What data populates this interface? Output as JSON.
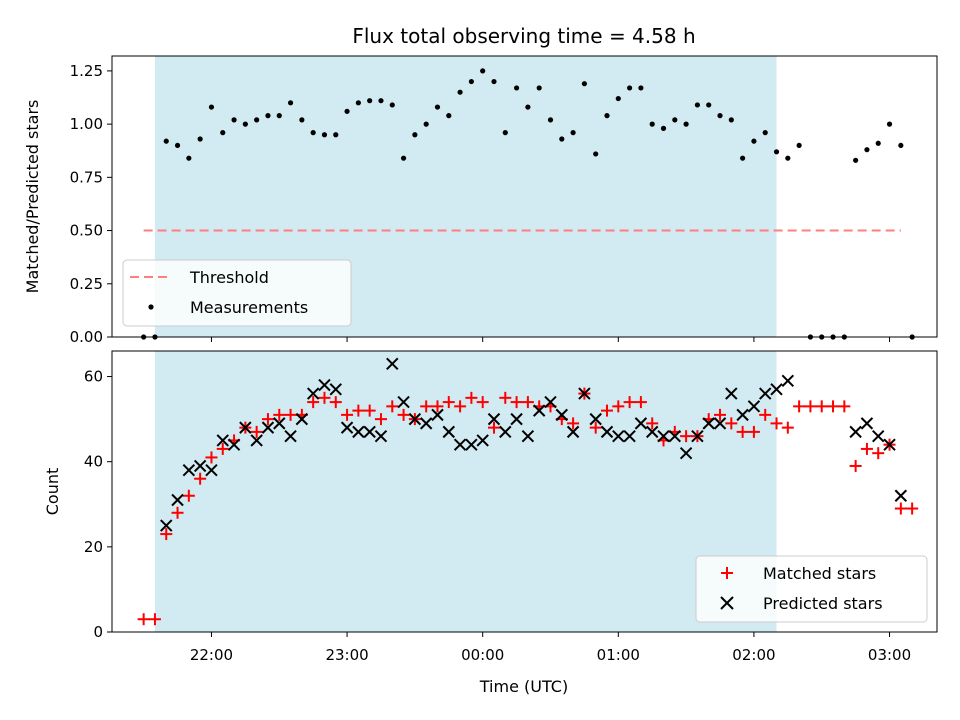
{
  "chart_data": [
    {
      "type": "scatter",
      "title": "Flux total observing time = 4.58 h",
      "xlabel": "",
      "ylabel": "Matched/Predicted stars",
      "xlim": [
        "21:16",
        "03:21"
      ],
      "ylim": [
        0,
        1.32
      ],
      "yticks": [
        "0.00",
        "0.25",
        "0.50",
        "0.75",
        "1.00",
        "1.25"
      ],
      "ytick_values": [
        0,
        0.25,
        0.5,
        0.75,
        1.0,
        1.25
      ],
      "shaded_interval": [
        "21:35",
        "02:10"
      ],
      "shade_color": "#add8e6",
      "threshold": {
        "name": "Threshold",
        "value": 0.5,
        "x_range": [
          "21:30",
          "03:05"
        ],
        "color": "#ff7f7f"
      },
      "legend_position": "lower left",
      "series": [
        {
          "name": "Measurements",
          "marker": "dot",
          "color": "#000000",
          "points": [
            [
              "21:30",
              0
            ],
            [
              "21:35",
              0
            ],
            [
              "21:40",
              0.92
            ],
            [
              "21:45",
              0.9
            ],
            [
              "21:50",
              0.84
            ],
            [
              "21:55",
              0.93
            ],
            [
              "22:00",
              1.08
            ],
            [
              "22:05",
              0.96
            ],
            [
              "22:10",
              1.02
            ],
            [
              "22:15",
              1.0
            ],
            [
              "22:20",
              1.02
            ],
            [
              "22:25",
              1.04
            ],
            [
              "22:30",
              1.04
            ],
            [
              "22:35",
              1.1
            ],
            [
              "22:40",
              1.02
            ],
            [
              "22:45",
              0.96
            ],
            [
              "22:50",
              0.95
            ],
            [
              "22:55",
              0.95
            ],
            [
              "23:00",
              1.06
            ],
            [
              "23:05",
              1.1
            ],
            [
              "23:10",
              1.11
            ],
            [
              "23:15",
              1.11
            ],
            [
              "23:20",
              1.09
            ],
            [
              "23:25",
              0.84
            ],
            [
              "23:30",
              0.95
            ],
            [
              "23:35",
              1.0
            ],
            [
              "23:40",
              1.08
            ],
            [
              "23:45",
              1.04
            ],
            [
              "23:50",
              1.15
            ],
            [
              "23:55",
              1.2
            ],
            [
              "00:00",
              1.25
            ],
            [
              "00:05",
              1.2
            ],
            [
              "00:10",
              0.96
            ],
            [
              "00:15",
              1.17
            ],
            [
              "00:20",
              1.08
            ],
            [
              "00:25",
              1.17
            ],
            [
              "00:30",
              1.02
            ],
            [
              "00:35",
              0.93
            ],
            [
              "00:40",
              0.96
            ],
            [
              "00:45",
              1.19
            ],
            [
              "00:50",
              0.86
            ],
            [
              "00:55",
              1.04
            ],
            [
              "01:00",
              1.12
            ],
            [
              "01:05",
              1.17
            ],
            [
              "01:10",
              1.17
            ],
            [
              "01:15",
              1.0
            ],
            [
              "01:20",
              0.98
            ],
            [
              "01:25",
              1.02
            ],
            [
              "01:30",
              1.0
            ],
            [
              "01:35",
              1.09
            ],
            [
              "01:40",
              1.09
            ],
            [
              "01:45",
              1.04
            ],
            [
              "01:50",
              1.02
            ],
            [
              "01:55",
              0.84
            ],
            [
              "02:00",
              0.92
            ],
            [
              "02:05",
              0.96
            ],
            [
              "02:10",
              0.87
            ],
            [
              "02:15",
              0.84
            ],
            [
              "02:20",
              0.9
            ],
            [
              "02:25",
              0
            ],
            [
              "02:30",
              0
            ],
            [
              "02:35",
              0
            ],
            [
              "02:40",
              0
            ],
            [
              "02:45",
              0.83
            ],
            [
              "02:50",
              0.88
            ],
            [
              "02:55",
              0.91
            ],
            [
              "03:00",
              1.0
            ],
            [
              "03:05",
              0.9
            ],
            [
              "03:10",
              0
            ]
          ]
        }
      ]
    },
    {
      "type": "scatter",
      "title": "",
      "xlabel": "Time (UTC)",
      "ylabel": "Count",
      "xlim": [
        "21:16",
        "03:21"
      ],
      "ylim": [
        0,
        66
      ],
      "xticks": [
        "22:00",
        "23:00",
        "00:00",
        "01:00",
        "02:00",
        "03:00"
      ],
      "yticks": [
        "0",
        "20",
        "40",
        "60"
      ],
      "ytick_values": [
        0,
        20,
        40,
        60
      ],
      "shaded_interval": [
        "21:35",
        "02:10"
      ],
      "shade_color": "#add8e6",
      "legend_position": "lower right",
      "series": [
        {
          "name": "Matched stars",
          "marker": "plus",
          "color": "#ff0000",
          "points": [
            [
              "21:30",
              3
            ],
            [
              "21:35",
              3
            ],
            [
              "21:40",
              23
            ],
            [
              "21:45",
              28
            ],
            [
              "21:50",
              32
            ],
            [
              "21:55",
              36
            ],
            [
              "22:00",
              41
            ],
            [
              "22:05",
              43
            ],
            [
              "22:10",
              45
            ],
            [
              "22:15",
              48
            ],
            [
              "22:20",
              47
            ],
            [
              "22:25",
              50
            ],
            [
              "22:30",
              51
            ],
            [
              "22:35",
              51
            ],
            [
              "22:40",
              51
            ],
            [
              "22:45",
              54
            ],
            [
              "22:50",
              55
            ],
            [
              "22:55",
              54
            ],
            [
              "23:00",
              51
            ],
            [
              "23:05",
              52
            ],
            [
              "23:10",
              52
            ],
            [
              "23:15",
              50
            ],
            [
              "23:20",
              53
            ],
            [
              "23:25",
              51
            ],
            [
              "23:30",
              50
            ],
            [
              "23:35",
              53
            ],
            [
              "23:40",
              53
            ],
            [
              "23:45",
              54
            ],
            [
              "23:50",
              53
            ],
            [
              "23:55",
              55
            ],
            [
              "00:00",
              54
            ],
            [
              "00:05",
              48
            ],
            [
              "00:10",
              55
            ],
            [
              "00:15",
              54
            ],
            [
              "00:20",
              54
            ],
            [
              "00:25",
              53
            ],
            [
              "00:30",
              53
            ],
            [
              "00:35",
              50
            ],
            [
              "00:40",
              49
            ],
            [
              "00:45",
              56
            ],
            [
              "00:50",
              48
            ],
            [
              "00:55",
              52
            ],
            [
              "01:00",
              53
            ],
            [
              "01:05",
              54
            ],
            [
              "01:10",
              54
            ],
            [
              "01:15",
              49
            ],
            [
              "01:20",
              45
            ],
            [
              "01:25",
              47
            ],
            [
              "01:30",
              46
            ],
            [
              "01:35",
              46
            ],
            [
              "01:40",
              50
            ],
            [
              "01:45",
              51
            ],
            [
              "01:50",
              49
            ],
            [
              "01:55",
              47
            ],
            [
              "02:00",
              47
            ],
            [
              "02:05",
              51
            ],
            [
              "02:10",
              49
            ],
            [
              "02:15",
              48
            ],
            [
              "02:20",
              53
            ],
            [
              "02:25",
              53
            ],
            [
              "02:30",
              53
            ],
            [
              "02:35",
              53
            ],
            [
              "02:40",
              53
            ],
            [
              "02:45",
              39
            ],
            [
              "02:50",
              43
            ],
            [
              "02:55",
              42
            ],
            [
              "03:00",
              44
            ],
            [
              "03:05",
              29
            ],
            [
              "03:10",
              29
            ]
          ]
        },
        {
          "name": "Predicted stars",
          "marker": "x",
          "color": "#000000",
          "points": [
            [
              "21:40",
              25
            ],
            [
              "21:45",
              31
            ],
            [
              "21:50",
              38
            ],
            [
              "21:55",
              39
            ],
            [
              "22:00",
              38
            ],
            [
              "22:05",
              45
            ],
            [
              "22:10",
              44
            ],
            [
              "22:15",
              48
            ],
            [
              "22:20",
              45
            ],
            [
              "22:25",
              48
            ],
            [
              "22:30",
              49
            ],
            [
              "22:35",
              46
            ],
            [
              "22:40",
              50
            ],
            [
              "22:45",
              56
            ],
            [
              "22:50",
              58
            ],
            [
              "22:55",
              57
            ],
            [
              "23:00",
              48
            ],
            [
              "23:05",
              47
            ],
            [
              "23:10",
              47
            ],
            [
              "23:15",
              46
            ],
            [
              "23:20",
              63
            ],
            [
              "23:25",
              54
            ],
            [
              "23:30",
              50
            ],
            [
              "23:35",
              49
            ],
            [
              "23:40",
              51
            ],
            [
              "23:45",
              47
            ],
            [
              "23:50",
              44
            ],
            [
              "23:55",
              44
            ],
            [
              "00:00",
              45
            ],
            [
              "00:05",
              50
            ],
            [
              "00:10",
              47
            ],
            [
              "00:15",
              50
            ],
            [
              "00:20",
              46
            ],
            [
              "00:25",
              52
            ],
            [
              "00:30",
              54
            ],
            [
              "00:35",
              51
            ],
            [
              "00:40",
              47
            ],
            [
              "00:45",
              56
            ],
            [
              "00:50",
              50
            ],
            [
              "00:55",
              47
            ],
            [
              "01:00",
              46
            ],
            [
              "01:05",
              46
            ],
            [
              "01:10",
              49
            ],
            [
              "01:15",
              47
            ],
            [
              "01:20",
              46
            ],
            [
              "01:25",
              46
            ],
            [
              "01:30",
              42
            ],
            [
              "01:35",
              46
            ],
            [
              "01:40",
              49
            ],
            [
              "01:45",
              49
            ],
            [
              "01:50",
              56
            ],
            [
              "01:55",
              51
            ],
            [
              "02:00",
              53
            ],
            [
              "02:05",
              56
            ],
            [
              "02:10",
              57
            ],
            [
              "02:15",
              59
            ],
            [
              "02:45",
              47
            ],
            [
              "02:50",
              49
            ],
            [
              "02:55",
              46
            ],
            [
              "03:00",
              44
            ],
            [
              "03:05",
              32
            ]
          ]
        }
      ]
    }
  ]
}
